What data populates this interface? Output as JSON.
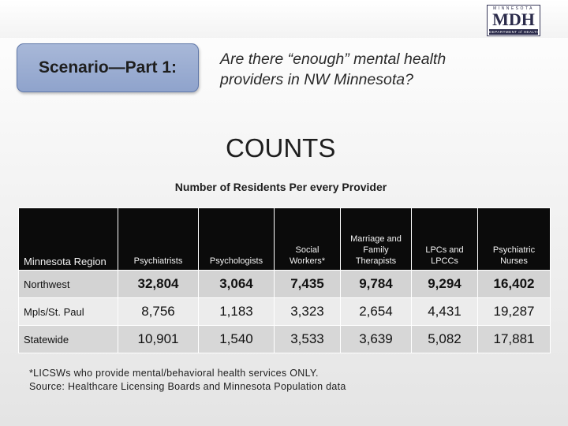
{
  "logo": {
    "top_text": "MINNESOTA",
    "main_text": "MDH",
    "bottom_text": "DEPARTMENT of HEALTH"
  },
  "scenario": {
    "label": "Scenario—Part 1:",
    "question_line1": "Are there “enough” mental health",
    "question_line2": "providers in NW Minnesota?"
  },
  "heading": "COUNTS",
  "table_title": "Number of Residents Per every Provider",
  "table": {
    "corner_header": "Minnesota Region",
    "columns": [
      "Psychiatrists",
      "Psychologists",
      "Social Workers*",
      "Marriage and Family Therapists",
      "LPCs and LPCCs",
      "Psychiatric Nurses"
    ],
    "rows": [
      {
        "region": "Northwest",
        "values": [
          "32,804",
          "3,064",
          "7,435",
          "9,784",
          "9,294",
          "16,402"
        ]
      },
      {
        "region": "Mpls/St. Paul",
        "values": [
          "8,756",
          "1,183",
          "3,323",
          "2,654",
          "4,431",
          "19,287"
        ]
      },
      {
        "region": "Statewide",
        "values": [
          "10,901",
          "1,540",
          "3,533",
          "3,639",
          "5,082",
          "17,881"
        ]
      }
    ]
  },
  "footnote": {
    "line1": "*LICSWs who provide mental/behavioral health services ONLY.",
    "line2": "Source: Healthcare Licensing Boards and Minnesota Population data"
  }
}
